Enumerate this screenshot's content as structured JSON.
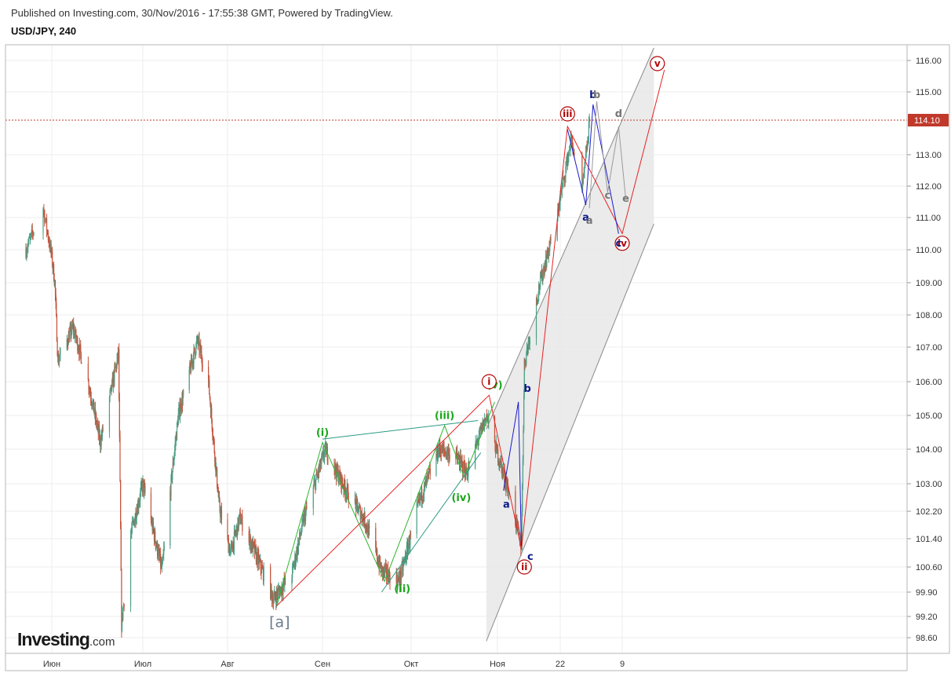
{
  "header": {
    "published": "Published on Investing.com, 30/Nov/2016 - 17:55:38 GMT, Powered by TradingView.",
    "symbol": "USD/JPY, 240"
  },
  "brand": {
    "name": "Investing",
    "suffix": ".com"
  },
  "colors": {
    "candle_up": "#4e9f86",
    "candle_down": "#c4523a",
    "wave_red": "#e52222",
    "wave_green": "#2db52d",
    "wave_teal": "#2a9b83",
    "wave_blue": "#1a1acc",
    "wave_gray": "#9a9a9a",
    "channel_fill": "#e8e8e8",
    "price_line": "#c0392b",
    "label_red": "#b30000",
    "label_green": "#1aa61a",
    "label_navy": "#0d1a8a",
    "label_gray": "#777777",
    "label_slate": "#6a7b8c"
  },
  "chart_data": {
    "type": "candlestick",
    "instrument": "USD/JPY",
    "timeframe": "240",
    "xlabels": [
      "Июн",
      "Июл",
      "Авг",
      "Сен",
      "Окт",
      "Ноя",
      "22",
      "9"
    ],
    "ytick_labels": [
      "116.00",
      "115.00",
      "113.00",
      "112.00",
      "111.00",
      "110.00",
      "109.00",
      "108.00",
      "107.00",
      "106.00",
      "105.00",
      "104.00",
      "103.00",
      "102.20",
      "101.40",
      "100.60",
      "99.90",
      "99.20",
      "98.60"
    ],
    "last_price": {
      "label": "114.10",
      "value": 114.1
    },
    "price_path": [
      [
        "2016-05-26",
        110.0
      ],
      [
        "2016-05-30",
        111.3
      ],
      [
        "2016-06-02",
        109.0
      ],
      [
        "2016-06-03",
        106.6
      ],
      [
        "2016-06-08",
        107.6
      ],
      [
        "2016-06-13",
        106.0
      ],
      [
        "2016-06-17",
        104.2
      ],
      [
        "2016-06-23",
        106.8
      ],
      [
        "2016-06-24",
        99.0
      ],
      [
        "2016-06-27",
        101.5
      ],
      [
        "2016-07-01",
        103.0
      ],
      [
        "2016-07-08",
        100.5
      ],
      [
        "2016-07-14",
        105.0
      ],
      [
        "2016-07-21",
        107.2
      ],
      [
        "2016-07-25",
        106.0
      ],
      [
        "2016-07-29",
        102.3
      ],
      [
        "2016-08-02",
        101.0
      ],
      [
        "2016-08-05",
        102.0
      ],
      [
        "2016-08-10",
        101.0
      ],
      [
        "2016-08-16",
        99.7
      ],
      [
        "2016-08-22",
        100.4
      ],
      [
        "2016-08-26",
        102.0
      ],
      [
        "2016-09-02",
        104.0
      ],
      [
        "2016-09-09",
        102.8
      ],
      [
        "2016-09-15",
        102.0
      ],
      [
        "2016-09-21",
        100.5
      ],
      [
        "2016-09-27",
        100.2
      ],
      [
        "2016-10-04",
        102.5
      ],
      [
        "2016-10-11",
        104.0
      ],
      [
        "2016-10-17",
        103.8
      ],
      [
        "2016-10-21",
        103.3
      ],
      [
        "2016-10-28",
        105.0
      ],
      [
        "2016-11-04",
        103.0
      ],
      [
        "2016-11-09",
        101.2
      ],
      [
        "2016-11-10",
        106.5
      ],
      [
        "2016-11-15",
        108.9
      ],
      [
        "2016-11-21",
        111.0
      ],
      [
        "2016-11-25",
        113.5
      ],
      [
        "2016-11-28",
        111.8
      ],
      [
        "2016-11-30",
        114.0
      ]
    ],
    "wave_labels": [
      {
        "text": "(i)",
        "date": "2016-09-01",
        "price": 104.4,
        "style": "green"
      },
      {
        "text": "(ii)",
        "date": "2016-09-28",
        "price": 99.9,
        "style": "green"
      },
      {
        "text": "(iii)",
        "date": "2016-10-13",
        "price": 104.9,
        "style": "green"
      },
      {
        "text": "(iv)",
        "date": "2016-10-19",
        "price": 102.5,
        "style": "green"
      },
      {
        "text": "(v)",
        "date": "2016-10-31",
        "price": 105.8,
        "style": "green"
      },
      {
        "text": "[a]",
        "date": "2016-08-18",
        "price": 98.9,
        "style": "slate"
      },
      {
        "text": "i",
        "date": "2016-10-29",
        "price": 106.0,
        "style": "red-circle"
      },
      {
        "text": "ii",
        "date": "2016-11-10",
        "price": 100.6,
        "style": "red-circle"
      },
      {
        "text": "iii",
        "date": "2016-11-24",
        "price": 114.3,
        "style": "red-circle"
      },
      {
        "text": "iv",
        "date": "2016-12-09",
        "price": 110.2,
        "style": "red-circle"
      },
      {
        "text": "v",
        "date": "2016-12-19",
        "price": 115.9,
        "style": "red-circle"
      },
      {
        "text": "a",
        "date": "2016-11-04",
        "price": 102.3,
        "style": "navy"
      },
      {
        "text": "b",
        "date": "2016-11-11",
        "price": 105.7,
        "style": "navy"
      },
      {
        "text": "c",
        "date": "2016-11-12",
        "price": 100.8,
        "style": "navy"
      },
      {
        "text": "a",
        "date": "2016-11-29",
        "price": 110.9,
        "style": "navy"
      },
      {
        "text": "b",
        "date": "2016-12-01",
        "price": 114.8,
        "style": "navy"
      },
      {
        "text": "c",
        "date": "2016-12-08",
        "price": 110.1,
        "style": "navy"
      },
      {
        "text": "a",
        "date": "2016-11-30",
        "price": 110.8,
        "style": "gray"
      },
      {
        "text": "b",
        "date": "2016-12-02",
        "price": 114.8,
        "style": "gray"
      },
      {
        "text": "c",
        "date": "2016-12-05",
        "price": 111.6,
        "style": "gray"
      },
      {
        "text": "d",
        "date": "2016-12-08",
        "price": 114.2,
        "style": "gray"
      },
      {
        "text": "e",
        "date": "2016-12-10",
        "price": 111.5,
        "style": "gray"
      }
    ],
    "wave_lines": [
      {
        "style": "green",
        "points": [
          [
            "2016-08-17",
            99.5
          ],
          [
            "2016-09-01",
            104.2
          ],
          [
            "2016-09-22",
            100.2
          ],
          [
            "2016-10-13",
            104.7
          ],
          [
            "2016-10-20",
            103.2
          ],
          [
            "2016-10-31",
            105.4
          ]
        ]
      },
      {
        "style": "teal",
        "points": [
          [
            "2016-09-01",
            104.3
          ],
          [
            "2016-10-25",
            104.85
          ]
        ]
      },
      {
        "style": "teal",
        "points": [
          [
            "2016-09-21",
            99.9
          ],
          [
            "2016-10-26",
            103.9
          ]
        ]
      },
      {
        "style": "red",
        "points": [
          [
            "2016-08-17",
            99.5
          ],
          [
            "2016-10-29",
            105.6
          ],
          [
            "2016-11-09",
            101.1
          ],
          [
            "2016-11-24",
            113.9
          ],
          [
            "2016-12-09",
            110.5
          ],
          [
            "2016-12-21",
            115.7
          ]
        ]
      },
      {
        "style": "blue",
        "points": [
          [
            "2016-11-03",
            102.8
          ],
          [
            "2016-11-08",
            105.4
          ],
          [
            "2016-11-09",
            101.2
          ]
        ]
      },
      {
        "style": "blue",
        "points": [
          [
            "2016-11-24",
            113.8
          ],
          [
            "2016-11-29",
            111.4
          ],
          [
            "2016-12-01",
            114.6
          ],
          [
            "2016-12-08",
            110.5
          ]
        ]
      },
      {
        "style": "gray",
        "points": [
          [
            "2016-11-30",
            111.3
          ],
          [
            "2016-12-02",
            114.7
          ],
          [
            "2016-12-05",
            111.8
          ],
          [
            "2016-12-08",
            113.9
          ],
          [
            "2016-12-10",
            111.6
          ]
        ]
      }
    ],
    "channel": {
      "upper": [
        [
          "2016-10-28",
          104.6
        ],
        [
          "2016-12-18",
          116.4
        ]
      ],
      "lower": [
        [
          "2016-10-28",
          98.5
        ],
        [
          "2016-12-18",
          110.8
        ]
      ]
    }
  }
}
